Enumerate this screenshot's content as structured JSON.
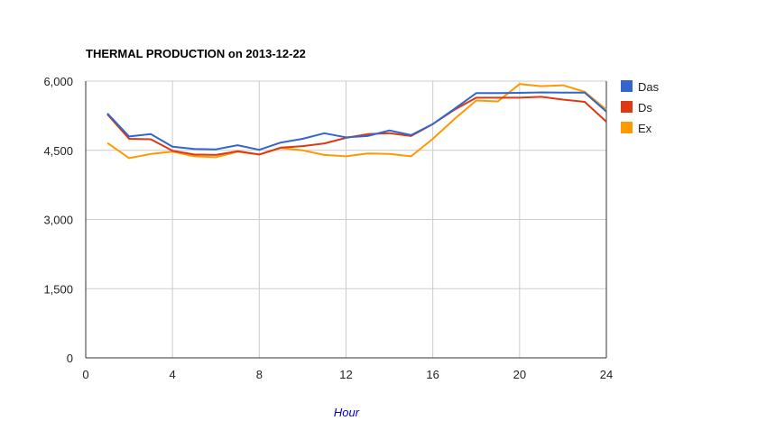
{
  "chart_data": {
    "type": "line",
    "title": "THERMAL PRODUCTION on 2013-12-22",
    "xlabel": "Hour",
    "ylabel": "",
    "xlim": [
      0,
      24
    ],
    "ylim": [
      0,
      6000
    ],
    "x_ticks": [
      0,
      4,
      8,
      12,
      16,
      20,
      24
    ],
    "x_tick_labels": [
      "0",
      "4",
      "8",
      "12",
      "16",
      "20",
      "24"
    ],
    "y_ticks": [
      0,
      1500,
      3000,
      4500,
      6000
    ],
    "y_tick_labels": [
      "0",
      "1,500",
      "3,000",
      "4,500",
      "6,000"
    ],
    "grid": true,
    "legend_position": "right",
    "series": [
      {
        "name": "Das",
        "color": "#3366cc",
        "x": [
          1,
          2,
          3,
          4,
          5,
          6,
          7,
          8,
          9,
          10,
          11,
          12,
          13,
          14,
          15,
          16,
          17,
          18,
          19,
          20,
          21,
          22,
          23,
          24
        ],
        "values": [
          5300,
          4800,
          4850,
          4580,
          4530,
          4520,
          4610,
          4510,
          4670,
          4750,
          4870,
          4780,
          4810,
          4930,
          4830,
          5070,
          5400,
          5740,
          5740,
          5745,
          5755,
          5750,
          5750,
          5340
        ]
      },
      {
        "name": "Ds",
        "color": "#dc3912",
        "x": [
          1,
          2,
          3,
          4,
          5,
          6,
          7,
          8,
          9,
          10,
          11,
          12,
          13,
          14,
          15,
          16,
          17,
          18,
          19,
          20,
          21,
          22,
          23,
          24
        ],
        "values": [
          5280,
          4750,
          4740,
          4490,
          4410,
          4400,
          4480,
          4410,
          4560,
          4590,
          4650,
          4770,
          4850,
          4870,
          4810,
          5070,
          5380,
          5640,
          5640,
          5640,
          5660,
          5600,
          5550,
          5120
        ]
      },
      {
        "name": "Ex",
        "color": "#ff9900",
        "x": [
          1,
          2,
          3,
          4,
          5,
          6,
          7,
          8,
          9,
          10,
          11,
          12,
          13,
          14,
          15,
          16,
          17,
          18,
          19,
          20,
          21,
          22,
          23,
          24
        ],
        "values": [
          4660,
          4330,
          4420,
          4470,
          4370,
          4350,
          4470,
          4410,
          4550,
          4500,
          4400,
          4370,
          4430,
          4420,
          4370,
          4750,
          5180,
          5580,
          5560,
          5935,
          5890,
          5910,
          5770,
          5380
        ]
      }
    ]
  }
}
